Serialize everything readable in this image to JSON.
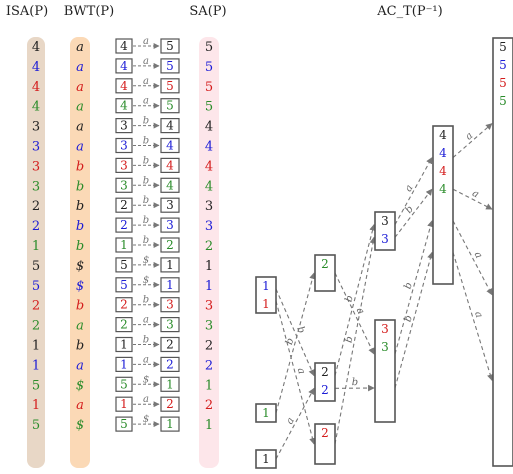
{
  "headers": {
    "isa": "ISA(P)",
    "bwt": "BWT(P)",
    "sa": "SA(P)",
    "ac": "AC_T(P⁻¹)"
  },
  "colors": {
    "black": "#222222",
    "blue": "#1c1cd6",
    "red": "#d41c1c",
    "green": "#2a8c2a",
    "isa_band": "#e8d7c6",
    "bwt_band": "#fbd9b6",
    "sa_band": "#fde6ea",
    "box_stroke": "#555555",
    "arrow": "#777777"
  },
  "rows": [
    {
      "isa": "4",
      "bwt": "a",
      "f": "4",
      "edge": "a",
      "l": "5",
      "sa": "5",
      "color": "black"
    },
    {
      "isa": "4",
      "bwt": "a",
      "f": "4",
      "edge": "a",
      "l": "5",
      "sa": "5",
      "color": "blue"
    },
    {
      "isa": "4",
      "bwt": "a",
      "f": "4",
      "edge": "a",
      "l": "5",
      "sa": "5",
      "color": "red"
    },
    {
      "isa": "4",
      "bwt": "a",
      "f": "4",
      "edge": "a",
      "l": "5",
      "sa": "5",
      "color": "green"
    },
    {
      "isa": "3",
      "bwt": "a",
      "f": "3",
      "edge": "b",
      "l": "4",
      "sa": "4",
      "color": "black"
    },
    {
      "isa": "3",
      "bwt": "a",
      "f": "3",
      "edge": "b",
      "l": "4",
      "sa": "4",
      "color": "blue"
    },
    {
      "isa": "3",
      "bwt": "b",
      "f": "3",
      "edge": "b",
      "l": "4",
      "sa": "4",
      "color": "red"
    },
    {
      "isa": "3",
      "bwt": "b",
      "f": "3",
      "edge": "b",
      "l": "4",
      "sa": "4",
      "color": "green"
    },
    {
      "isa": "2",
      "bwt": "b",
      "f": "2",
      "edge": "b",
      "l": "3",
      "sa": "3",
      "color": "black"
    },
    {
      "isa": "2",
      "bwt": "b",
      "f": "2",
      "edge": "b",
      "l": "3",
      "sa": "3",
      "color": "blue"
    },
    {
      "isa": "1",
      "bwt": "b",
      "f": "1",
      "edge": "b",
      "l": "2",
      "sa": "2",
      "color": "green"
    },
    {
      "isa": "5",
      "bwt": "$",
      "f": "5",
      "edge": "$",
      "l": "1",
      "sa": "1",
      "color": "black"
    },
    {
      "isa": "5",
      "bwt": "$",
      "f": "5",
      "edge": "$",
      "l": "1",
      "sa": "1",
      "color": "blue"
    },
    {
      "isa": "2",
      "bwt": "b",
      "f": "2",
      "edge": "b",
      "l": "3",
      "sa": "3",
      "color": "red"
    },
    {
      "isa": "2",
      "bwt": "a",
      "f": "2",
      "edge": "a",
      "l": "3",
      "sa": "3",
      "color": "green"
    },
    {
      "isa": "1",
      "bwt": "b",
      "f": "1",
      "edge": "b",
      "l": "2",
      "sa": "2",
      "color": "black"
    },
    {
      "isa": "1",
      "bwt": "a",
      "f": "1",
      "edge": "a",
      "l": "2",
      "sa": "2",
      "color": "blue"
    },
    {
      "isa": "5",
      "bwt": "$",
      "f": "5",
      "edge": "$",
      "l": "1",
      "sa": "1",
      "color": "green"
    },
    {
      "isa": "1",
      "bwt": "a",
      "f": "1",
      "edge": "a",
      "l": "2",
      "sa": "2",
      "color": "red"
    },
    {
      "isa": "5",
      "bwt": "$",
      "f": "5",
      "edge": "$",
      "l": "1",
      "sa": "1",
      "color": "green"
    }
  ],
  "automaton": {
    "nodes": [
      {
        "id": "n1a",
        "labels": [
          {
            "t": "1",
            "c": "blue"
          },
          {
            "t": "1",
            "c": "red"
          }
        ]
      },
      {
        "id": "n1b",
        "labels": [
          {
            "t": "1",
            "c": "green"
          }
        ]
      },
      {
        "id": "n1c",
        "labels": [
          {
            "t": "1",
            "c": "black"
          }
        ]
      },
      {
        "id": "n2a",
        "labels": [
          {
            "t": "2",
            "c": "green"
          }
        ]
      },
      {
        "id": "n2b",
        "labels": [
          {
            "t": "2",
            "c": "black"
          },
          {
            "t": "2",
            "c": "blue"
          }
        ]
      },
      {
        "id": "n2c",
        "labels": [
          {
            "t": "2",
            "c": "red"
          }
        ]
      },
      {
        "id": "n3a",
        "labels": [
          {
            "t": "3",
            "c": "black"
          },
          {
            "t": "3",
            "c": "blue"
          }
        ]
      },
      {
        "id": "n3b",
        "labels": [
          {
            "t": "3",
            "c": "red"
          },
          {
            "t": "3",
            "c": "green"
          }
        ]
      },
      {
        "id": "n4",
        "labels": [
          {
            "t": "4",
            "c": "black"
          },
          {
            "t": "4",
            "c": "blue"
          },
          {
            "t": "4",
            "c": "red"
          },
          {
            "t": "4",
            "c": "green"
          }
        ]
      },
      {
        "id": "n5",
        "labels": [
          {
            "t": "5",
            "c": "black"
          },
          {
            "t": "5",
            "c": "blue"
          },
          {
            "t": "5",
            "c": "red"
          },
          {
            "t": "5",
            "c": "green"
          }
        ]
      }
    ],
    "edges": [
      {
        "from": "n1a",
        "to": "n2b",
        "label": "b"
      },
      {
        "from": "n1a",
        "to": "n2c",
        "label": "a"
      },
      {
        "from": "n1b",
        "to": "n2a",
        "label": "b"
      },
      {
        "from": "n1c",
        "to": "n2b",
        "label": "a"
      },
      {
        "from": "n2a",
        "to": "n3b",
        "label": "a"
      },
      {
        "from": "n2b",
        "to": "n3a",
        "label": "b"
      },
      {
        "from": "n2b",
        "to": "n3b",
        "label": "b"
      },
      {
        "from": "n2c",
        "to": "n3a",
        "label": "b"
      },
      {
        "from": "n3a",
        "to": "n4",
        "label": "a"
      },
      {
        "from": "n3a",
        "to": "n4",
        "label": "b"
      },
      {
        "from": "n3b",
        "to": "n4",
        "label": "b"
      },
      {
        "from": "n3b",
        "to": "n4",
        "label": "b"
      },
      {
        "from": "n4",
        "to": "n5",
        "label": "a"
      },
      {
        "from": "n4",
        "to": "n5",
        "label": "a"
      },
      {
        "from": "n4",
        "to": "n5",
        "label": "a"
      },
      {
        "from": "n4",
        "to": "n5",
        "label": "a"
      }
    ]
  }
}
